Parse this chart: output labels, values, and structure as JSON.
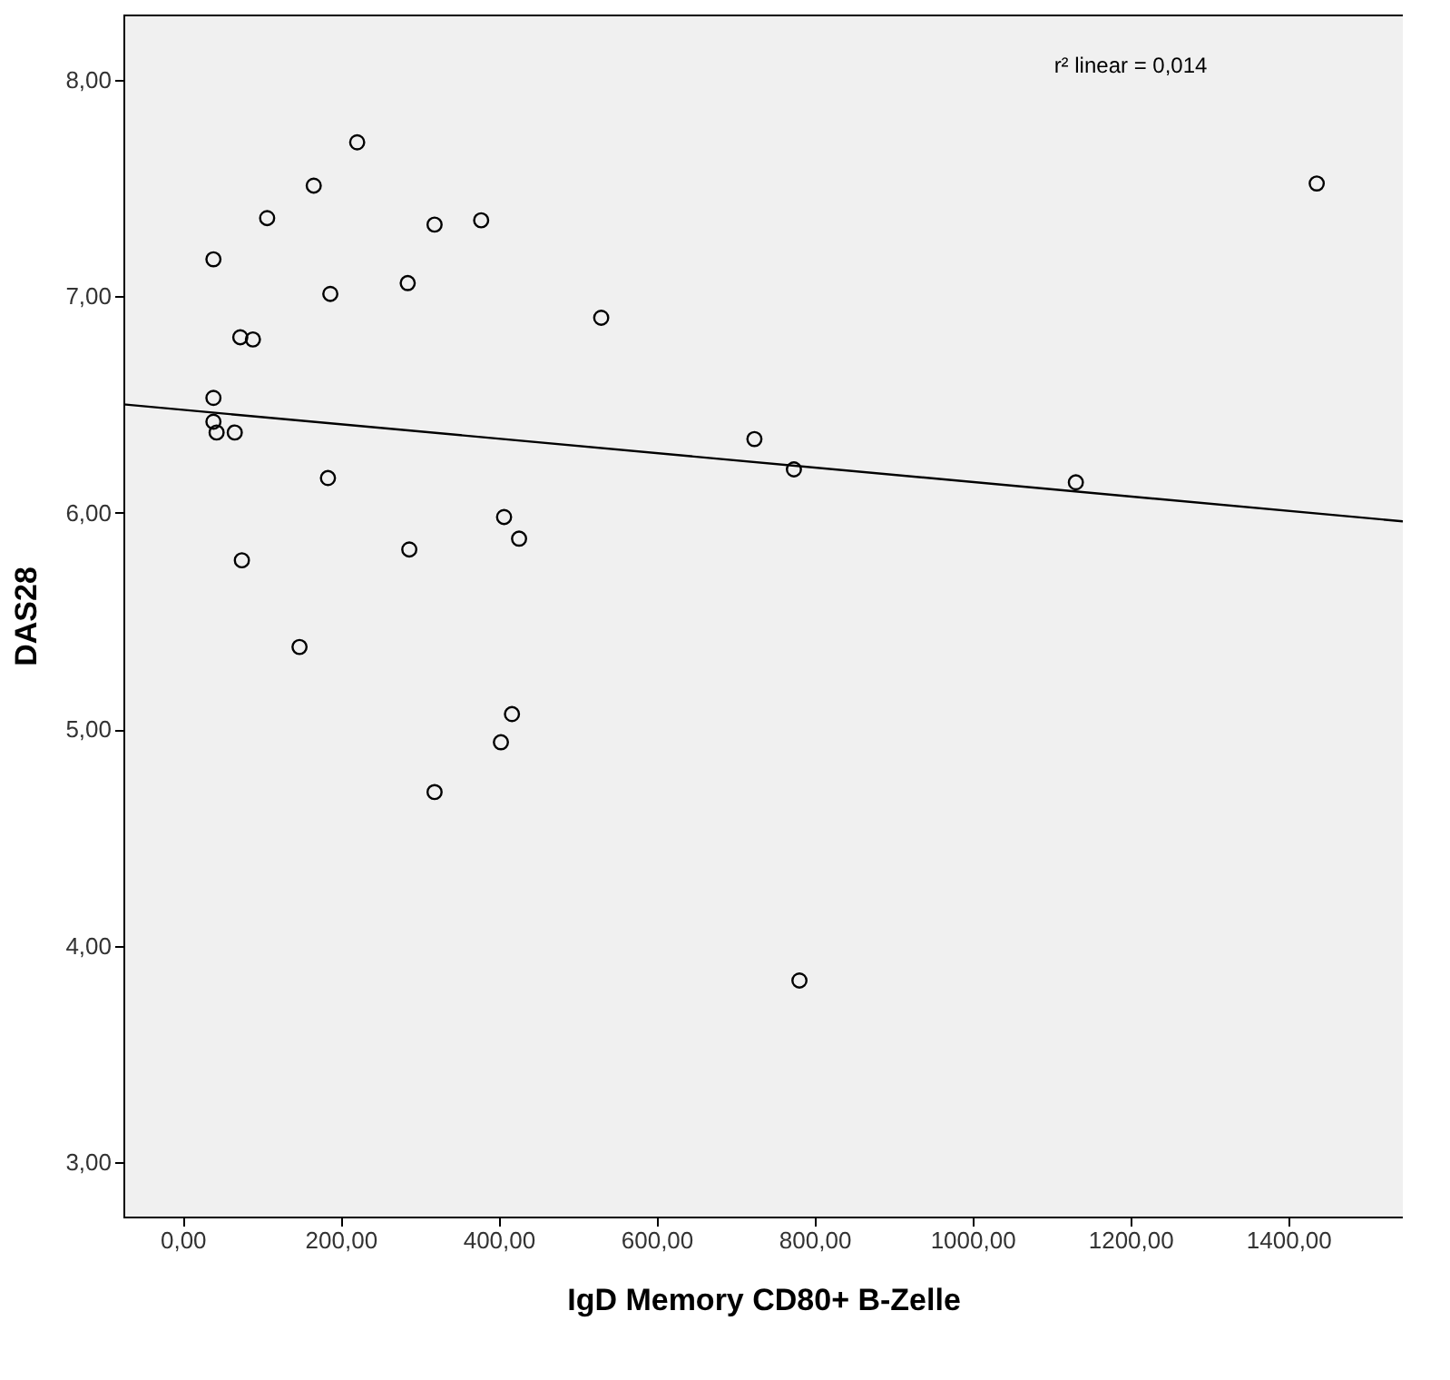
{
  "chart_data": {
    "type": "scatter",
    "xlabel": "IgD Memory CD80+ B-Zelle",
    "ylabel": "DAS28",
    "annotations": [
      "r² linear = 0,014"
    ],
    "xlim": [
      -75,
      1545
    ],
    "ylim": [
      2.75,
      8.3
    ],
    "xticks": [
      {
        "value": 0,
        "label": "0,00"
      },
      {
        "value": 200,
        "label": "200,00"
      },
      {
        "value": 400,
        "label": "400,00"
      },
      {
        "value": 600,
        "label": "600,00"
      },
      {
        "value": 800,
        "label": "800,00"
      },
      {
        "value": 1000,
        "label": "1000,00"
      },
      {
        "value": 1200,
        "label": "1200,00"
      },
      {
        "value": 1400,
        "label": "1400,00"
      }
    ],
    "yticks": [
      {
        "value": 3,
        "label": "3,00"
      },
      {
        "value": 4,
        "label": "4,00"
      },
      {
        "value": 5,
        "label": "5,00"
      },
      {
        "value": 6,
        "label": "6,00"
      },
      {
        "value": 7,
        "label": "7,00"
      },
      {
        "value": 8,
        "label": "8,00"
      }
    ],
    "grid": false,
    "line_style": "solid",
    "series": [
      {
        "marker": "circle",
        "color": "#000000",
        "x": [
          39,
          107,
          166,
          221,
          319,
          378,
          187,
          285,
          73,
          89,
          39,
          39,
          43,
          66,
          530,
          724,
          774,
          1131,
          1436,
          184,
          75,
          287,
          407,
          426,
          148,
          417,
          403,
          319,
          781
        ],
        "values": [
          7.17,
          7.36,
          7.51,
          7.71,
          7.33,
          7.35,
          7.01,
          7.06,
          6.81,
          6.8,
          6.53,
          6.42,
          6.37,
          6.37,
          6.9,
          6.34,
          6.2,
          6.14,
          7.52,
          6.16,
          5.78,
          5.83,
          5.98,
          5.88,
          5.38,
          5.07,
          4.94,
          4.71,
          3.84
        ]
      },
      {
        "type": "line",
        "color": "#000000",
        "x": [
          -75,
          1545
        ],
        "values": [
          6.5,
          5.96
        ]
      }
    ]
  }
}
